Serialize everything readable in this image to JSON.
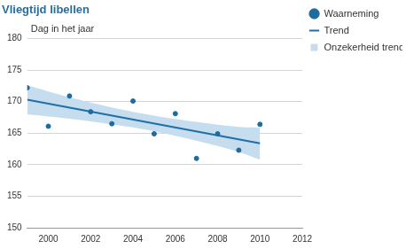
{
  "chart_data": {
    "type": "scatter",
    "title": "Vliegtijd libellen",
    "y_label": "Dag in het jaar",
    "xlim": [
      1999,
      2012
    ],
    "xticks": [
      2000,
      2002,
      2004,
      2006,
      2008,
      2010,
      2012
    ],
    "ylim": [
      150,
      180
    ],
    "yticks": [
      150,
      155,
      160,
      165,
      170,
      175,
      180
    ],
    "grid": true,
    "legend": "right",
    "series": [
      {
        "name": "Waarneming",
        "type": "scatter",
        "marker": "circle",
        "color": "#1f6a9e",
        "x": [
          1999,
          2000,
          2001,
          2002,
          2003,
          2004,
          2005,
          2006,
          2007,
          2008,
          2009,
          2010
        ],
        "values": [
          172.2,
          166.1,
          170.9,
          168.4,
          166.5,
          170.1,
          164.9,
          168.1,
          161.0,
          164.9,
          162.3,
          166.4
        ]
      },
      {
        "name": "Trend",
        "type": "line",
        "line_style": "solid",
        "color": "#1f6fa8",
        "x": [
          1999,
          2010
        ],
        "values": [
          170.3,
          163.4
        ]
      },
      {
        "name": "Onzekerheid trend",
        "type": "band",
        "color": "#c6dcef",
        "x": [
          1999,
          2001,
          2003,
          2005,
          2007,
          2009,
          2010
        ],
        "lower": [
          168.0,
          167.3,
          166.4,
          165.3,
          163.8,
          162.0,
          160.8
        ],
        "upper": [
          172.6,
          170.7,
          169.1,
          167.8,
          166.8,
          166.0,
          165.9
        ]
      }
    ]
  }
}
